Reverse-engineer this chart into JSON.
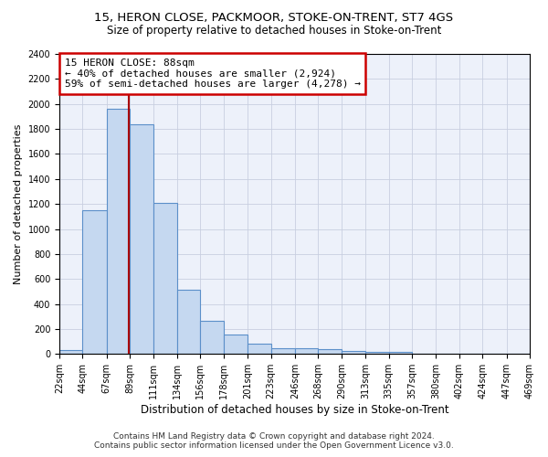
{
  "title1": "15, HERON CLOSE, PACKMOOR, STOKE-ON-TRENT, ST7 4GS",
  "title2": "Size of property relative to detached houses in Stoke-on-Trent",
  "xlabel": "Distribution of detached houses by size in Stoke-on-Trent",
  "ylabel": "Number of detached properties",
  "annotation_title": "15 HERON CLOSE: 88sqm",
  "annotation_line1": "← 40% of detached houses are smaller (2,924)",
  "annotation_line2": "59% of semi-detached houses are larger (4,278) →",
  "footer1": "Contains HM Land Registry data © Crown copyright and database right 2024.",
  "footer2": "Contains public sector information licensed under the Open Government Licence v3.0.",
  "property_size_sqm": 88,
  "bin_edges": [
    22,
    44,
    67,
    89,
    111,
    134,
    156,
    178,
    201,
    223,
    246,
    268,
    290,
    313,
    335,
    357,
    380,
    402,
    424,
    447,
    469
  ],
  "bar_heights": [
    30,
    1150,
    1960,
    1840,
    1210,
    515,
    265,
    155,
    80,
    50,
    45,
    40,
    25,
    20,
    15,
    5,
    5,
    5,
    5,
    5
  ],
  "bar_color": "#c5d8f0",
  "bar_edge_color": "#5b8fc9",
  "marker_line_color": "#aa0000",
  "annotation_box_color": "#cc0000",
  "background_color": "#edf1fa",
  "grid_color": "#c8cfe0",
  "ylim": [
    0,
    2400
  ],
  "yticks": [
    0,
    200,
    400,
    600,
    800,
    1000,
    1200,
    1400,
    1600,
    1800,
    2000,
    2200,
    2400
  ],
  "title1_fontsize": 9.5,
  "title2_fontsize": 8.5,
  "xlabel_fontsize": 8.5,
  "ylabel_fontsize": 8,
  "tick_fontsize": 7,
  "annotation_fontsize": 8,
  "footer_fontsize": 6.5
}
